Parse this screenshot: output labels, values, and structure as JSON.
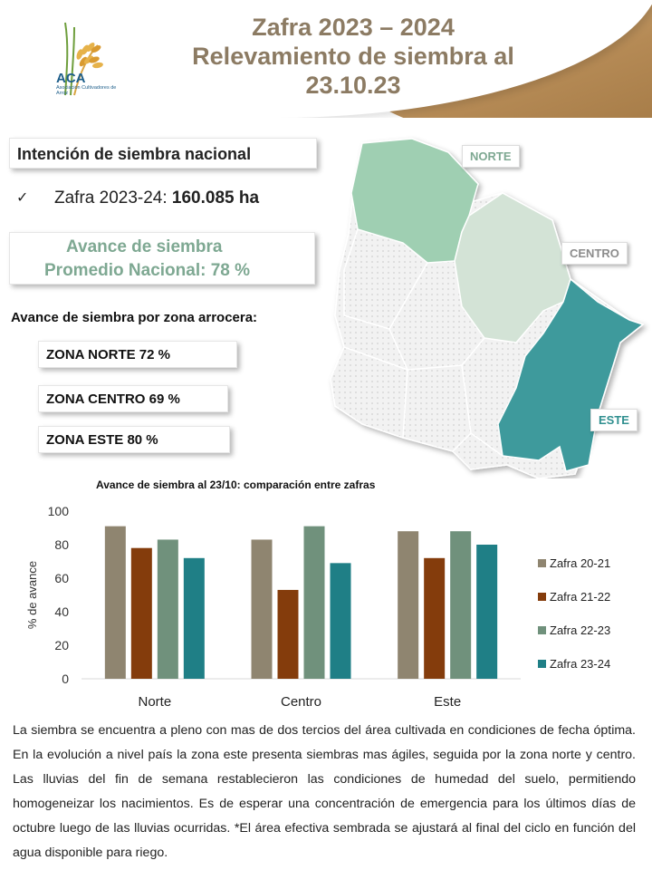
{
  "header": {
    "title_line1": "Zafra 2023 – 2024",
    "title_line2": "Relevamiento de siembra al",
    "title_line3": "23.10.23"
  },
  "logo": {
    "acronym": "ACA",
    "subtitle": "Asociación Cultivadores de Arroz"
  },
  "summary": {
    "intencion_label": "Intención de siembra nacional",
    "check_symbol": "✓",
    "zafra_label": "Zafra 2023-24:",
    "zafra_value": "160.085 ha",
    "avance_line1": "Avance de siembra",
    "avance_line2": "Promedio Nacional:  78 %",
    "zona_heading": "Avance de siembra por zona arrocera:",
    "zona_norte": "ZONA NORTE  72 %",
    "zona_centro": "ZONA CENTRO 69 %",
    "zona_este": "ZONA ESTE  80 %"
  },
  "map": {
    "label_norte": "NORTE",
    "label_centro": "CENTRO",
    "label_este": "ESTE",
    "colors": {
      "norte": "#9fcfb2",
      "centro": "#d3e3d6",
      "este": "#3e9a9c",
      "other": "#efefef"
    }
  },
  "chart_data": {
    "type": "bar",
    "title": "Avance de siembra al 23/10: comparación entre zafras",
    "ylabel": "% de avance",
    "xlabel": "",
    "ylim": [
      0,
      100
    ],
    "yticks": [
      0,
      20,
      40,
      60,
      80,
      100
    ],
    "categories": [
      "Norte",
      "Centro",
      "Este"
    ],
    "series": [
      {
        "name": "Zafra 20-21",
        "color": "#8f8570",
        "values": [
          91,
          83,
          88
        ]
      },
      {
        "name": "Zafra 21-22",
        "color": "#843c0c",
        "values": [
          78,
          53,
          72
        ]
      },
      {
        "name": "Zafra 22-23",
        "color": "#70917c",
        "values": [
          83,
          91,
          88
        ]
      },
      {
        "name": "Zafra 23-24",
        "color": "#1f7f86",
        "values": [
          72,
          69,
          80
        ]
      }
    ],
    "legend_position": "right"
  },
  "paragraph": "La siembra se encuentra a pleno con mas de dos tercios del área cultivada en condiciones de fecha óptima. En la evolución a nivel país la zona este presenta siembras mas ágiles, seguida por la zona norte y centro. Las lluvias del fin de semana restablecieron las condiciones de humedad del suelo, permitiendo homogeneizar los nacimientos. Es de esperar una concentración de emergencia para los últimos días de octubre luego de las lluvias ocurridas. *El área efectiva sembrada se ajustará al final del ciclo en función del agua disponible para riego."
}
